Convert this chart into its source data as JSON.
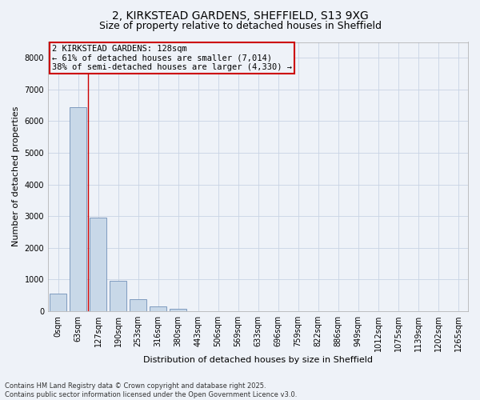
{
  "title_line1": "2, KIRKSTEAD GARDENS, SHEFFIELD, S13 9XG",
  "title_line2": "Size of property relative to detached houses in Sheffield",
  "xlabel": "Distribution of detached houses by size in Sheffield",
  "ylabel": "Number of detached properties",
  "bar_labels": [
    "0sqm",
    "63sqm",
    "127sqm",
    "190sqm",
    "253sqm",
    "316sqm",
    "380sqm",
    "443sqm",
    "506sqm",
    "569sqm",
    "633sqm",
    "696sqm",
    "759sqm",
    "822sqm",
    "886sqm",
    "949sqm",
    "1012sqm",
    "1075sqm",
    "1139sqm",
    "1202sqm",
    "1265sqm"
  ],
  "bar_values": [
    560,
    6450,
    2950,
    970,
    370,
    160,
    70,
    0,
    0,
    0,
    0,
    0,
    0,
    0,
    0,
    0,
    0,
    0,
    0,
    0,
    0
  ],
  "bar_color": "#c8d8e8",
  "bar_edge_color": "#7090b8",
  "vline_x": 1.5,
  "vline_color": "#cc0000",
  "annotation_text": "2 KIRKSTEAD GARDENS: 128sqm\n← 61% of detached houses are smaller (7,014)\n38% of semi-detached houses are larger (4,330) →",
  "annotation_box_color": "#cc0000",
  "ylim": [
    0,
    8500
  ],
  "yticks": [
    0,
    1000,
    2000,
    3000,
    4000,
    5000,
    6000,
    7000,
    8000
  ],
  "grid_color": "#c8d4e4",
  "bg_color": "#eef2f8",
  "footnote": "Contains HM Land Registry data © Crown copyright and database right 2025.\nContains public sector information licensed under the Open Government Licence v3.0.",
  "title_fontsize": 10,
  "subtitle_fontsize": 9,
  "axis_label_fontsize": 8,
  "tick_fontsize": 7,
  "annotation_fontsize": 7.5,
  "footnote_fontsize": 6
}
